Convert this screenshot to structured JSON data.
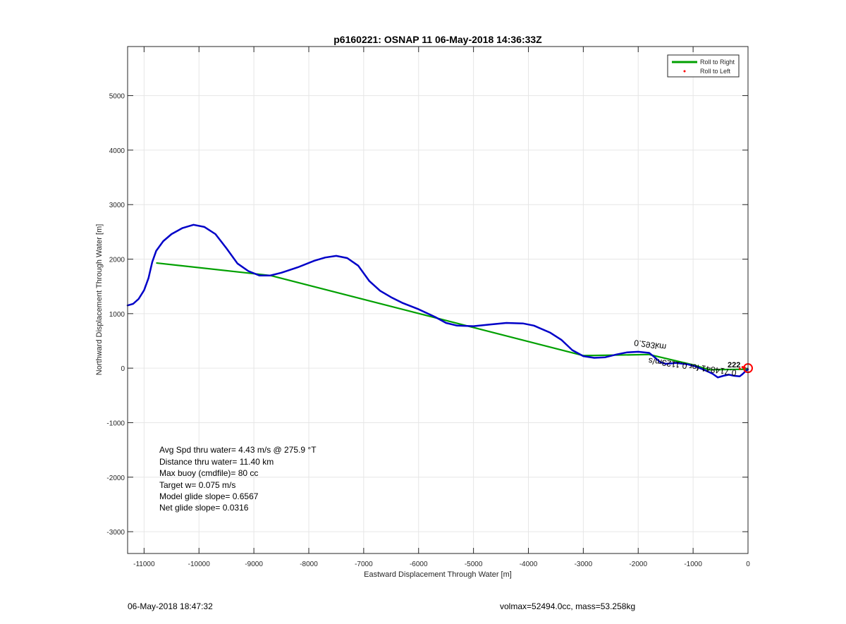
{
  "chart_data": {
    "type": "line",
    "title": "p6160221: OSNAP 11 06-May-2018 14:36:33Z",
    "xlabel": "Eastward Displacement Through Water [m]",
    "ylabel": "Northward Displacement Through Water [m]",
    "xlim": [
      -11300,
      0
    ],
    "ylim": [
      -3400,
      5900
    ],
    "xticks": [
      -11000,
      -10000,
      -9000,
      -8000,
      -7000,
      -6000,
      -5000,
      -4000,
      -3000,
      -2000,
      -1000,
      0
    ],
    "yticks": [
      -3000,
      -2000,
      -1000,
      0,
      1000,
      2000,
      3000,
      4000,
      5000
    ],
    "grid": true,
    "legend_position": "top-right",
    "legend": [
      {
        "label": "Roll to Right",
        "color": "#00a000",
        "style": "line"
      },
      {
        "label": "Roll to Left",
        "color": "#ff0000",
        "style": "dot"
      }
    ],
    "track": {
      "color": "#0000c8",
      "points": [
        [
          -11300,
          1150
        ],
        [
          -11200,
          1180
        ],
        [
          -11100,
          1270
        ],
        [
          -11000,
          1430
        ],
        [
          -10920,
          1650
        ],
        [
          -10850,
          1950
        ],
        [
          -10780,
          2150
        ],
        [
          -10650,
          2330
        ],
        [
          -10500,
          2460
        ],
        [
          -10300,
          2570
        ],
        [
          -10100,
          2630
        ],
        [
          -9900,
          2590
        ],
        [
          -9700,
          2460
        ],
        [
          -9500,
          2200
        ],
        [
          -9300,
          1920
        ],
        [
          -9100,
          1780
        ],
        [
          -8900,
          1700
        ],
        [
          -8700,
          1700
        ],
        [
          -8500,
          1750
        ],
        [
          -8200,
          1850
        ],
        [
          -7900,
          1970
        ],
        [
          -7700,
          2030
        ],
        [
          -7500,
          2060
        ],
        [
          -7300,
          2020
        ],
        [
          -7100,
          1880
        ],
        [
          -6900,
          1600
        ],
        [
          -6700,
          1420
        ],
        [
          -6500,
          1300
        ],
        [
          -6300,
          1200
        ],
        [
          -6000,
          1080
        ],
        [
          -5700,
          940
        ],
        [
          -5500,
          830
        ],
        [
          -5300,
          780
        ],
        [
          -5000,
          770
        ],
        [
          -4700,
          800
        ],
        [
          -4400,
          830
        ],
        [
          -4100,
          820
        ],
        [
          -3900,
          780
        ],
        [
          -3600,
          650
        ],
        [
          -3400,
          520
        ],
        [
          -3200,
          330
        ],
        [
          -3000,
          220
        ],
        [
          -2800,
          190
        ],
        [
          -2600,
          200
        ],
        [
          -2400,
          250
        ],
        [
          -2200,
          290
        ],
        [
          -2000,
          300
        ],
        [
          -1800,
          280
        ],
        [
          -1700,
          200
        ],
        [
          -1600,
          110
        ],
        [
          -1500,
          80
        ],
        [
          -1300,
          95
        ],
        [
          -1100,
          70
        ],
        [
          -950,
          30
        ],
        [
          -800,
          -30
        ],
        [
          -650,
          -100
        ],
        [
          -550,
          -170
        ],
        [
          -450,
          -140
        ],
        [
          -350,
          -120
        ],
        [
          -250,
          -140
        ],
        [
          -150,
          -150
        ],
        [
          -100,
          -110
        ],
        [
          -50,
          -60
        ],
        [
          0,
          -20
        ]
      ]
    },
    "roll_to_right_segments": [
      [
        [
          -10780,
          1930
        ],
        [
          -8700,
          1700
        ]
      ],
      [
        [
          -8700,
          1700
        ],
        [
          -3000,
          230
        ]
      ],
      [
        [
          -3000,
          230
        ],
        [
          -1800,
          250
        ]
      ],
      [
        [
          -1800,
          250
        ],
        [
          -1000,
          60
        ]
      ],
      [
        [
          -1000,
          60
        ],
        [
          -700,
          -30
        ]
      ],
      [
        [
          -700,
          -30
        ],
        [
          0,
          -20
        ]
      ]
    ],
    "roll_to_left_points": [
      [
        -150,
        -10
      ],
      [
        -100,
        20
      ],
      [
        -60,
        10
      ]
    ],
    "end_marker": {
      "x": 0,
      "y": 0,
      "color": "#ff0000"
    },
    "surface_labels": {
      "rotated_text": "0.293km",
      "mirrored_text": "0.714841 for 0.1123m/s",
      "clutter_text": "222"
    },
    "annotations": [
      "Avg Spd thru water=  4.43 m/s @ 275.9 °T",
      "Distance thru water= 11.40 km",
      "Max buoy (cmdfile)= 80 cc",
      "Target w= 0.075 m/s",
      "Model glide slope= 0.6567",
      "Net glide slope= 0.0316"
    ]
  },
  "footer": {
    "timestamp": "06-May-2018 18:47:32",
    "info": "volmax=52494.0cc, mass=53.258kg"
  }
}
